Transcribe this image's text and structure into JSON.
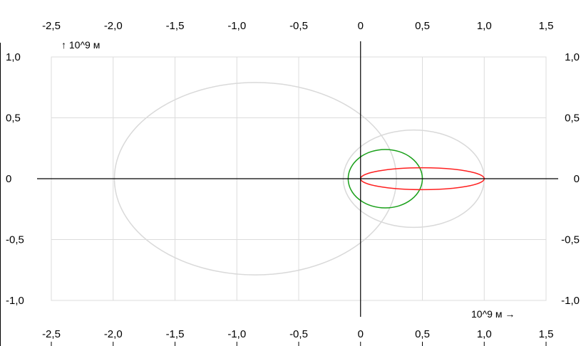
{
  "chart_data": {
    "type": "scatter",
    "title": "",
    "xlabel": "10^9 м →",
    "ylabel": "↑ 10^9 м",
    "xlim": [
      -2.5,
      1.5
    ],
    "ylim": [
      -1.0,
      1.0
    ],
    "x_ticks": [
      "-2,5",
      "-2,0",
      "-1,5",
      "-1,0",
      "-0,5",
      "0",
      "0,5",
      "1,0",
      "1,5"
    ],
    "x_tick_values": [
      -2.5,
      -2.0,
      -1.5,
      -1.0,
      -0.5,
      0,
      0.5,
      1.0,
      1.5
    ],
    "y_ticks": [
      "1,0",
      "0,5",
      "0",
      "-0,5",
      "-1,0"
    ],
    "y_tick_values": [
      1.0,
      0.5,
      0,
      -0.5,
      -1.0
    ],
    "grid": true,
    "axes_through_origin": true,
    "orbits": [
      {
        "center": [
          -0.85,
          0
        ],
        "rx": 1.14,
        "ry": 0.79,
        "color": "#d9d9d9"
      },
      {
        "center": [
          0.43,
          0
        ],
        "rx": 0.57,
        "ry": 0.4,
        "color": "#d9d9d9"
      },
      {
        "center": [
          0.2,
          0
        ],
        "rx": 0.3,
        "ry": 0.24,
        "color": "#1aa01a"
      },
      {
        "center": [
          0.5,
          0
        ],
        "rx": 0.5,
        "ry": 0.09,
        "color": "#ff2020"
      }
    ]
  }
}
